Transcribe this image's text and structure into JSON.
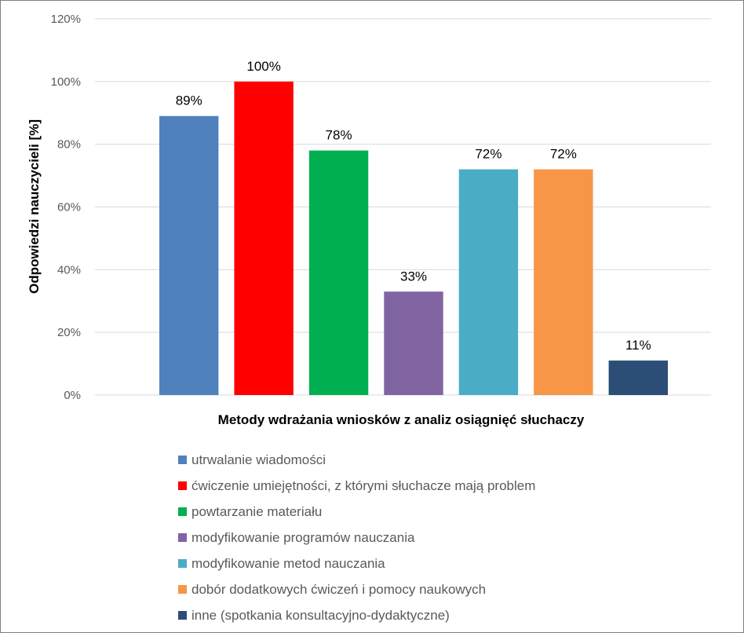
{
  "chart_data": {
    "type": "bar",
    "title": "",
    "xlabel": "Metody wdrażania wniosków z analiz osiągnięć słuchaczy",
    "ylabel": "Odpowiedzi nauczycieli [%]",
    "ylim": [
      0,
      120
    ],
    "yticks": [
      "0%",
      "20%",
      "40%",
      "60%",
      "80%",
      "100%",
      "120%"
    ],
    "ytick_values": [
      0,
      20,
      40,
      60,
      80,
      100,
      120
    ],
    "grid": true,
    "legend_position": "bottom",
    "series": [
      {
        "name": "utrwalanie wiadomości",
        "value": 89,
        "label": "89%",
        "color": "#4F81BD"
      },
      {
        "name": "ćwiczenie umiejętności, z którymi słuchacze mają problem",
        "value": 100,
        "label": "100%",
        "color": "#FF0000"
      },
      {
        "name": "powtarzanie materiału",
        "value": 78,
        "label": "78%",
        "color": "#00B050"
      },
      {
        "name": "modyfikowanie programów nauczania",
        "value": 33,
        "label": "33%",
        "color": "#8064A2"
      },
      {
        "name": "modyfikowanie metod nauczania",
        "value": 72,
        "label": "72%",
        "color": "#4BACC6"
      },
      {
        "name": "dobór dodatkowych ćwiczeń i pomocy naukowych",
        "value": 72,
        "label": "72%",
        "color": "#F79646"
      },
      {
        "name": "inne (spotkania konsultacyjno-dydaktyczne)",
        "value": 11,
        "label": "11%",
        "color": "#2C4D75"
      }
    ]
  }
}
